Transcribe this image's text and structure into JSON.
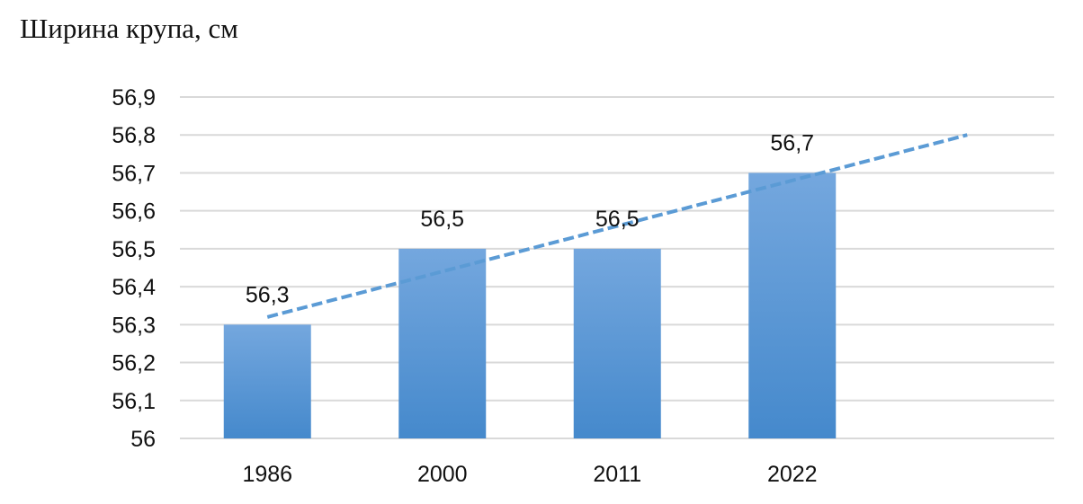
{
  "chart_data": {
    "type": "bar",
    "title": "Ширина крупа, см",
    "xlabel": "",
    "ylabel": "",
    "categories": [
      "1986",
      "2000",
      "2011",
      "2022"
    ],
    "values": [
      56.3,
      56.5,
      56.5,
      56.7
    ],
    "data_labels": [
      "56,3",
      "56,5",
      "56,5",
      "56,7"
    ],
    "ylim": [
      56,
      56.9
    ],
    "y_ticks": [
      56,
      56.1,
      56.2,
      56.3,
      56.4,
      56.5,
      56.6,
      56.7,
      56.8,
      56.9
    ],
    "y_tick_labels": [
      "56",
      "56,1",
      "56,2",
      "56,3",
      "56,4",
      "56,5",
      "56,6",
      "56,7",
      "56,8",
      "56,9"
    ],
    "grid": true,
    "legend": "none",
    "trendline": {
      "type": "linear",
      "style": "dashed",
      "x_start": 1,
      "x_end": 5,
      "y_start": 56.32,
      "y_end": 56.8
    },
    "colors": {
      "bar_top": "#74a7de",
      "bar_bottom": "#4589cc",
      "trendline": "#5b9bd5",
      "grid": "#d9d9d9"
    }
  }
}
